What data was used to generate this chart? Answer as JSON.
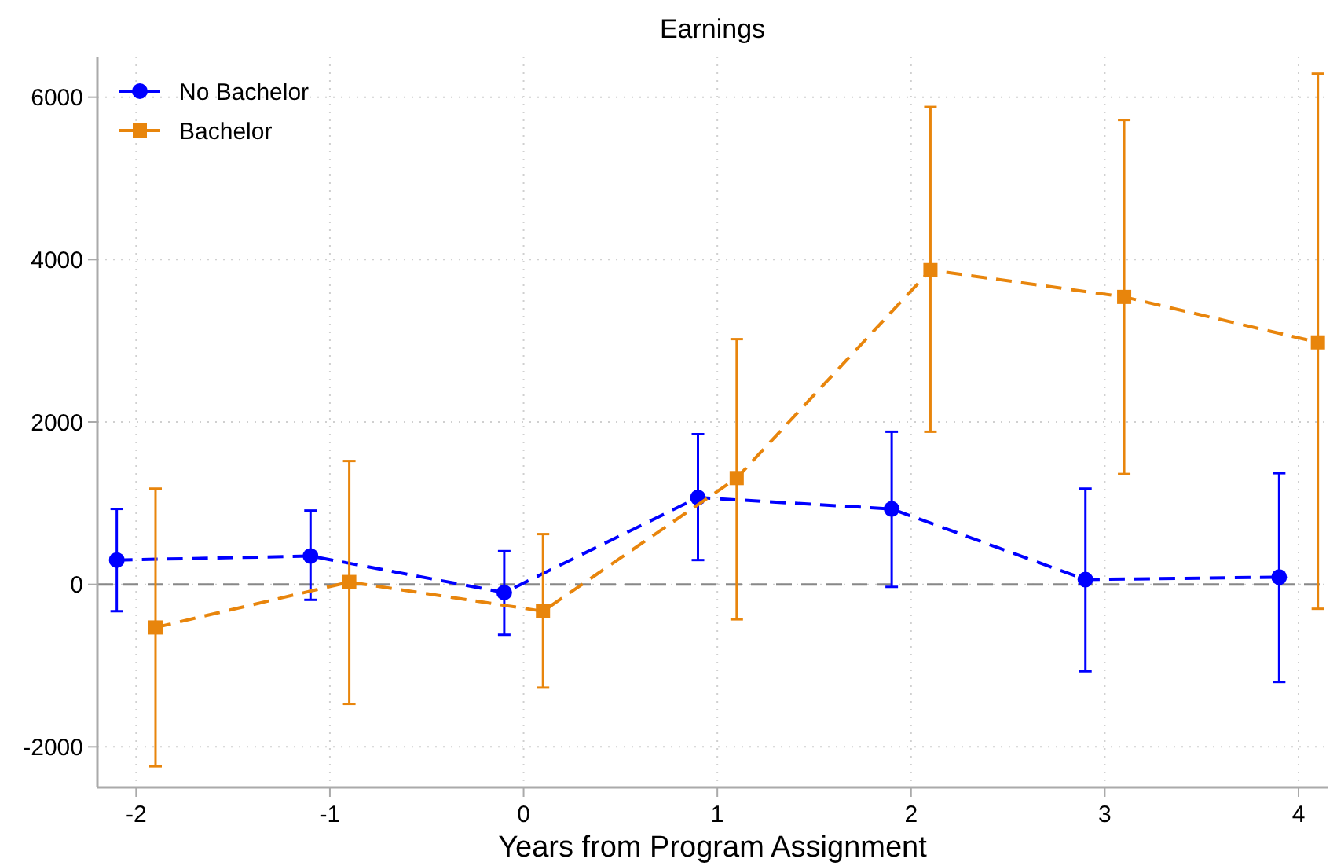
{
  "chart_data": {
    "type": "line",
    "title": "Earnings",
    "xlabel": "Years from Program Assignment",
    "xlim": [
      -2.2,
      4.15
    ],
    "xticks": [
      -2,
      -1,
      0,
      1,
      2,
      3,
      4
    ],
    "ylim": [
      -2500,
      6500
    ],
    "yticks": [
      -2000,
      0,
      2000,
      4000,
      6000
    ],
    "grid": true,
    "legend": "top left",
    "line_style": "dashed",
    "ref_lines": [
      {
        "axis": "y",
        "value": 0,
        "color": "#888888",
        "line_style": "dashed"
      }
    ],
    "series": [
      {
        "name": "No Bachelor",
        "color": "#0000ff",
        "marker": "circle",
        "x": [
          -2.1,
          -1.1,
          -0.1,
          0.9,
          1.9,
          2.9,
          3.9
        ],
        "values": [
          300,
          350,
          -100,
          1070,
          930,
          60,
          90
        ],
        "errors": [
          [
            -330,
            930
          ],
          [
            -190,
            910
          ],
          [
            -620,
            410
          ],
          [
            300,
            1850
          ],
          [
            -30,
            1880
          ],
          [
            -1070,
            1180
          ],
          [
            -1200,
            1370
          ]
        ]
      },
      {
        "name": "Bachelor",
        "color": "#e8850c",
        "marker": "square",
        "x": [
          -1.9,
          -0.9,
          0.1,
          1.1,
          2.1,
          3.1,
          4.1
        ],
        "values": [
          -530,
          30,
          -330,
          1310,
          3870,
          3540,
          2980
        ],
        "errors": [
          [
            -2240,
            1180
          ],
          [
            -1470,
            1520
          ],
          [
            -1270,
            620
          ],
          [
            -430,
            3020
          ],
          [
            1880,
            5880
          ],
          [
            1360,
            5720
          ],
          [
            -300,
            6290
          ]
        ]
      }
    ]
  }
}
